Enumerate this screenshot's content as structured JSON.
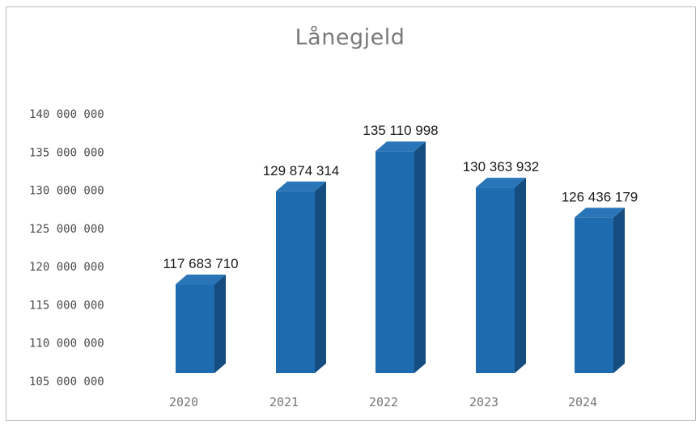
{
  "chart_data": {
    "type": "bar",
    "title": "Lånegjeld",
    "categories": [
      "2020",
      "2021",
      "2022",
      "2023",
      "2024"
    ],
    "values": [
      117683710,
      129874314,
      135110998,
      130363932,
      126436179
    ],
    "data_labels": [
      "117 683 710",
      "129 874 314",
      "135 110 998",
      "130 363 932",
      "126 436 179"
    ],
    "ylim": [
      105000000,
      140000000
    ],
    "yticks": [
      105000000,
      110000000,
      115000000,
      120000000,
      125000000,
      130000000,
      135000000,
      140000000
    ],
    "ytick_labels": [
      "105 000 000",
      "110 000 000",
      "115 000 000",
      "120 000 000",
      "125 000 000",
      "130 000 000",
      "135 000 000",
      "140 000 000"
    ],
    "xlabel": "",
    "ylabel": "",
    "grid": false,
    "style": "3d-column",
    "colors": {
      "bar_front": "#1f6bb0",
      "bar_side": "#154d80",
      "bar_top": "#2a75b8"
    }
  }
}
